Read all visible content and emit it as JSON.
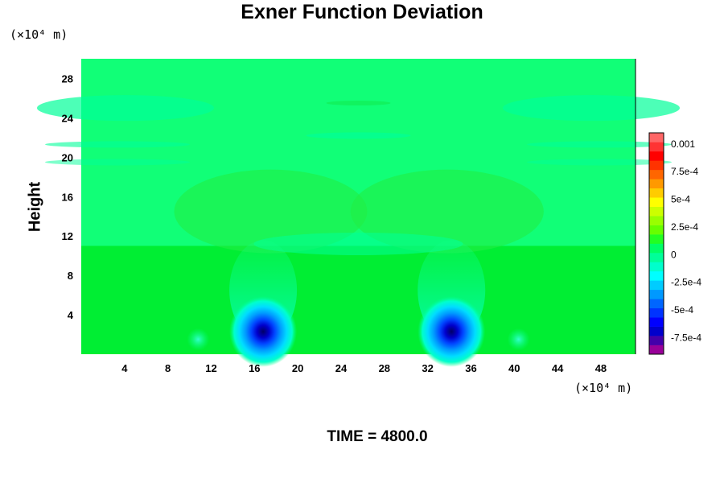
{
  "colors": {
    "field_background": "#00ee33",
    "upper_background": "#11ff77",
    "colorbar": [
      "#990099",
      "#4400aa",
      "#0000cc",
      "#0000ff",
      "#0033ff",
      "#0066ff",
      "#0099ff",
      "#00ccff",
      "#00ffff",
      "#00ffcc",
      "#00ff99",
      "#00ff66",
      "#22ff22",
      "#66ff00",
      "#99ff00",
      "#ccff00",
      "#ffff00",
      "#ffcc00",
      "#ff9900",
      "#ff6600",
      "#ff3300",
      "#ff0000",
      "#ff3333",
      "#ff6666"
    ]
  },
  "chart_data": {
    "type": "heatmap",
    "title": "Exner Function Deviation",
    "xlabel": "",
    "ylabel": "Height",
    "x_unit": "(×10⁴ m)",
    "y_unit": "(×10⁴ m)",
    "xlim": [
      0,
      51.2
    ],
    "ylim": [
      0,
      30
    ],
    "xticks": [
      4,
      8,
      12,
      16,
      20,
      24,
      28,
      32,
      36,
      40,
      44,
      48
    ],
    "yticks": [
      4,
      8,
      12,
      16,
      20,
      24,
      28
    ],
    "colorbar": {
      "range": [
        -0.0009,
        0.0011
      ],
      "ticks": [
        {
          "value": 0.001,
          "label": "0.001"
        },
        {
          "value": 0.00075,
          "label": "7.5e-4"
        },
        {
          "value": 0.0005,
          "label": "5e-4"
        },
        {
          "value": 0.00025,
          "label": "2.5e-4"
        },
        {
          "value": 0,
          "label": "0"
        },
        {
          "value": -0.00025,
          "label": "-2.5e-4"
        },
        {
          "value": -0.0005,
          "label": "-5e-4"
        },
        {
          "value": -0.00075,
          "label": "-7.5e-4"
        }
      ]
    },
    "features": [
      {
        "kind": "minimum",
        "x": 16.8,
        "y": 2.3,
        "value": -0.0008
      },
      {
        "kind": "minimum",
        "x": 34.2,
        "y": 2.3,
        "value": -0.0008
      },
      {
        "kind": "minimum",
        "x": 10.8,
        "y": 1.5,
        "value": -0.0001
      },
      {
        "kind": "minimum",
        "x": 40.4,
        "y": 1.5,
        "value": -0.0001
      }
    ]
  },
  "footer": {
    "time_label": "TIME = 4800.0"
  }
}
